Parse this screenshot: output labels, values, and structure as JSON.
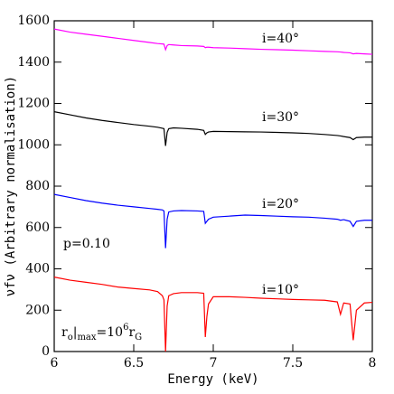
{
  "chart_data": {
    "type": "line",
    "x_label": "Energy (keV)",
    "y_label": "νfν (Arbitrary normalisation)",
    "x": [
      6.0,
      6.1,
      6.2,
      6.3,
      6.4,
      6.5,
      6.6,
      6.65,
      6.68,
      6.69,
      6.7,
      6.71,
      6.72,
      6.75,
      6.8,
      6.9,
      6.94,
      6.95,
      6.96,
      6.97,
      7.0,
      7.1,
      7.2,
      7.3,
      7.4,
      7.5,
      7.6,
      7.7,
      7.78,
      7.8,
      7.82,
      7.86,
      7.88,
      7.9,
      7.95,
      8.0
    ],
    "series": [
      {
        "name": "i=40°",
        "color": "#ff00ff",
        "values": [
          1560,
          1545,
          1535,
          1525,
          1515,
          1505,
          1495,
          1490,
          1488,
          1487,
          1460,
          1480,
          1485,
          1483,
          1480,
          1478,
          1476,
          1470,
          1472,
          1472,
          1470,
          1468,
          1465,
          1462,
          1460,
          1458,
          1455,
          1452,
          1450,
          1449,
          1447,
          1445,
          1440,
          1442,
          1440,
          1438
        ]
      },
      {
        "name": "i=30°",
        "color": "#000000",
        "values": [
          1160,
          1145,
          1130,
          1118,
          1108,
          1098,
          1090,
          1085,
          1080,
          1078,
          995,
          1060,
          1078,
          1082,
          1080,
          1075,
          1070,
          1050,
          1058,
          1062,
          1065,
          1064,
          1063,
          1062,
          1060,
          1058,
          1055,
          1050,
          1045,
          1043,
          1040,
          1035,
          1025,
          1035,
          1037,
          1037
        ]
      },
      {
        "name": "i=20°",
        "color": "#0000ff",
        "values": [
          760,
          745,
          730,
          718,
          708,
          700,
          692,
          688,
          685,
          680,
          500,
          640,
          675,
          680,
          682,
          680,
          678,
          620,
          630,
          640,
          650,
          655,
          660,
          658,
          655,
          652,
          650,
          645,
          640,
          635,
          638,
          630,
          605,
          630,
          635,
          635
        ]
      },
      {
        "name": "i=10°",
        "color": "#ff0000",
        "values": [
          360,
          345,
          335,
          325,
          312,
          305,
          298,
          290,
          270,
          250,
          0,
          220,
          270,
          280,
          285,
          285,
          282,
          70,
          170,
          230,
          265,
          265,
          262,
          258,
          255,
          252,
          250,
          248,
          240,
          180,
          235,
          230,
          55,
          200,
          235,
          238
        ]
      }
    ],
    "annotations": [
      "p=0.10"
    ],
    "radius_note": [
      {
        "text": "r"
      },
      {
        "text": "o",
        "baseline": "sub"
      },
      {
        "text": "|"
      },
      {
        "text": "max",
        "baseline": "sub"
      },
      {
        "text": "=10"
      },
      {
        "text": "6",
        "baseline": "super"
      },
      {
        "text": "r"
      },
      {
        "text": "G",
        "baseline": "sub"
      }
    ],
    "xlim": [
      6,
      8
    ],
    "xticks": [
      6,
      6.5,
      7,
      7.5,
      8
    ],
    "ylim": [
      0,
      1600
    ],
    "yticks": [
      0,
      200,
      400,
      600,
      800,
      1000,
      1200,
      1400,
      1600
    ]
  }
}
